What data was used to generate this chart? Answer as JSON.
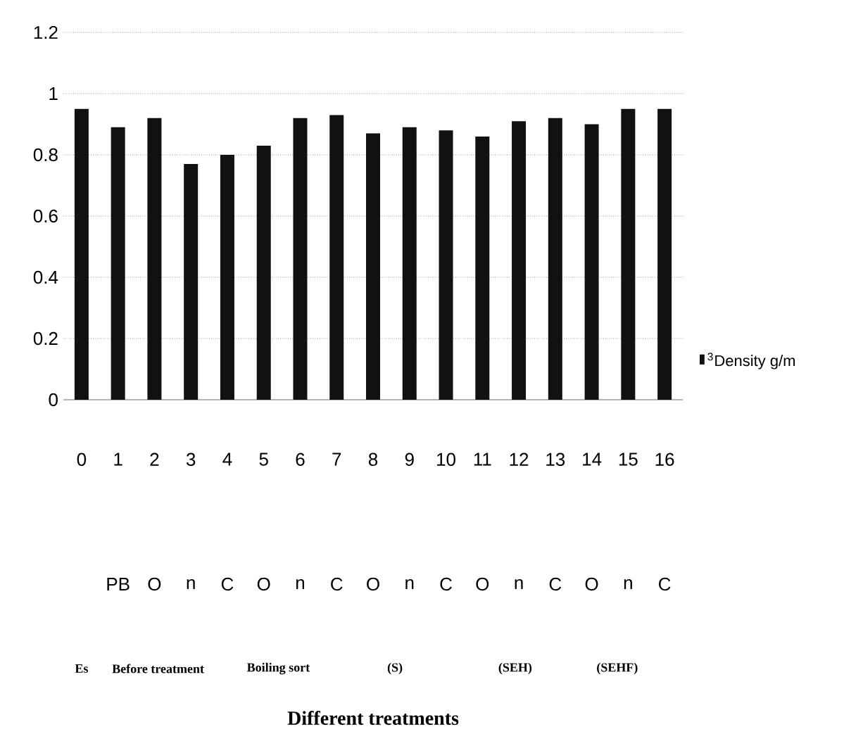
{
  "chart_data": {
    "type": "bar",
    "categories": [
      "0",
      "1",
      "2",
      "3",
      "4",
      "5",
      "6",
      "7",
      "8",
      "9",
      "10",
      "11",
      "12",
      "13",
      "14",
      "15",
      "16"
    ],
    "series": [
      {
        "name": "$^{3}$Density g/m",
        "color": "#111111",
        "values": [
          0.95,
          0.89,
          0.92,
          0.77,
          0.8,
          0.83,
          0.92,
          0.93,
          0.87,
          0.89,
          0.88,
          0.86,
          0.91,
          0.92,
          0.9,
          0.95,
          0.95
        ]
      }
    ],
    "ylim": [
      0,
      1.2
    ],
    "yticks": [
      0,
      0.2,
      0.4,
      0.6,
      0.8,
      1,
      1.2
    ],
    "grid": "y",
    "legend": "right",
    "annotations": [
      "PB",
      "O",
      "n",
      "C",
      "O",
      "n",
      "C",
      "O",
      "n",
      "C",
      "O",
      "n",
      "C",
      "O",
      "n",
      "C",
      "Es",
      "Before treatment",
      "Boiling sort",
      "(S)",
      "(SEH)",
      "(SEHF)",
      "Different treatments"
    ]
  }
}
